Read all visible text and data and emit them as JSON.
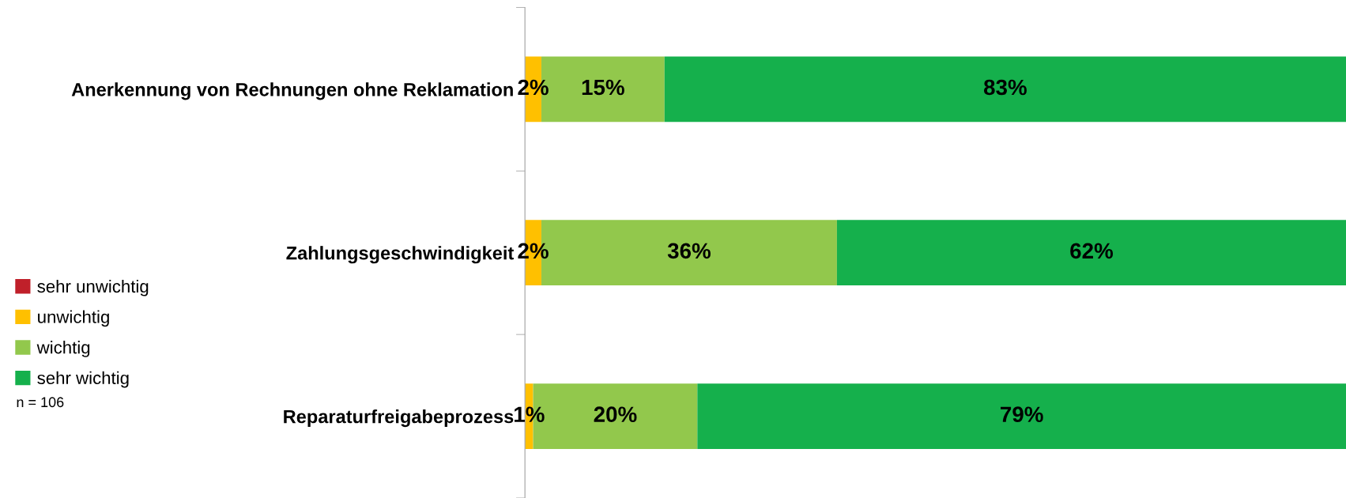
{
  "chart_data": {
    "type": "bar",
    "orientation": "horizontal",
    "stacked": true,
    "categories": [
      "Anerkennung von Rechnungen ohne Reklamation",
      "Zahlungsgeschwindigkeit",
      "Reparaturfreigabeprozess"
    ],
    "series": [
      {
        "name": "sehr unwichtig",
        "color": "#c0202a",
        "values": [
          0,
          0,
          0
        ],
        "value_labels": [
          null,
          null,
          null
        ]
      },
      {
        "name": "unwichtig",
        "color": "#ffc000",
        "values": [
          2,
          2,
          1
        ],
        "value_labels": [
          "2%",
          "2%",
          "1%"
        ]
      },
      {
        "name": "wichtig",
        "color": "#92c84c",
        "values": [
          15,
          36,
          20
        ],
        "value_labels": [
          "15%",
          "36%",
          "20%"
        ]
      },
      {
        "name": "sehr wichtig",
        "color": "#15b04c",
        "values": [
          83,
          62,
          79
        ],
        "value_labels": [
          "83%",
          "62%",
          "79%"
        ]
      }
    ],
    "xlim": [
      0,
      100
    ],
    "tick_labels": "y",
    "grid": false,
    "legend": "left",
    "annotations": [
      "n = 106"
    ]
  }
}
